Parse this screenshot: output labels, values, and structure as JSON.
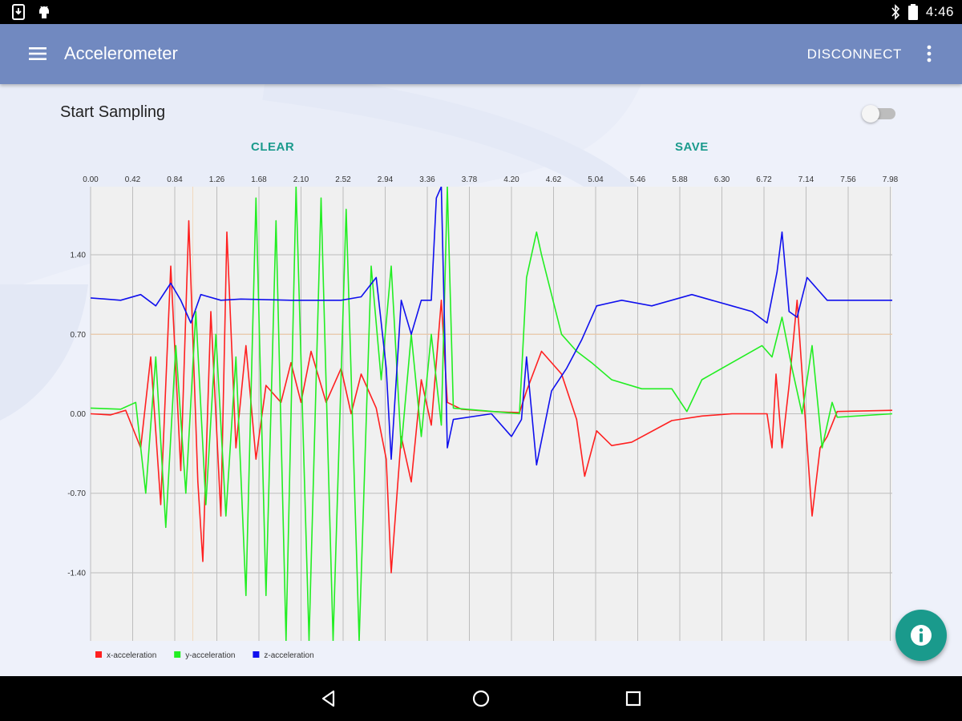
{
  "status_bar": {
    "time": "4:46",
    "icons": [
      "download-notification-icon",
      "android-notification-icon",
      "bluetooth-icon",
      "battery-icon"
    ]
  },
  "app_bar": {
    "title": "Accelerometer",
    "action_label": "DISCONNECT",
    "menu_icon": "hamburger-menu-icon",
    "overflow_icon": "overflow-menu-icon"
  },
  "controls": {
    "sampling_label": "Start Sampling",
    "sampling_enabled": false,
    "clear_label": "CLEAR",
    "save_label": "SAVE"
  },
  "colors": {
    "app_bar": "#7189c0",
    "accent": "#1a9a8c",
    "x_series": "#ff2020",
    "y_series": "#22ee22",
    "z_series": "#1010ee"
  },
  "chart_data": {
    "type": "line",
    "x_ticks": [
      "0.00",
      "0.42",
      "0.84",
      "1.26",
      "1.68",
      "2.10",
      "2.52",
      "2.94",
      "3.36",
      "3.78",
      "4.20",
      "4.62",
      "5.04",
      "5.46",
      "5.88",
      "6.30",
      "6.72",
      "7.14",
      "7.56",
      "7.98"
    ],
    "y_ticks": [
      "1.40",
      "0.70",
      "0.00",
      "-0.70",
      "-1.40"
    ],
    "xlim": [
      0,
      8.0
    ],
    "ylim": [
      -2.0,
      2.0
    ],
    "grid": true,
    "legend_position": "bottom-left",
    "series": [
      {
        "name": "x-acceleration",
        "color": "#ff2020",
        "points": [
          [
            0,
            0
          ],
          [
            0.2,
            -0.01
          ],
          [
            0.35,
            0.03
          ],
          [
            0.5,
            -0.3
          ],
          [
            0.6,
            0.5
          ],
          [
            0.7,
            -0.8
          ],
          [
            0.8,
            1.3
          ],
          [
            0.9,
            -0.5
          ],
          [
            0.98,
            1.7
          ],
          [
            1.07,
            -0.6
          ],
          [
            1.12,
            -1.3
          ],
          [
            1.2,
            0.9
          ],
          [
            1.3,
            -0.9
          ],
          [
            1.36,
            1.6
          ],
          [
            1.45,
            -0.3
          ],
          [
            1.55,
            0.6
          ],
          [
            1.65,
            -0.4
          ],
          [
            1.75,
            0.25
          ],
          [
            1.9,
            0.1
          ],
          [
            2.0,
            0.45
          ],
          [
            2.1,
            0.1
          ],
          [
            2.2,
            0.55
          ],
          [
            2.35,
            0.1
          ],
          [
            2.5,
            0.4
          ],
          [
            2.6,
            0.0
          ],
          [
            2.7,
            0.35
          ],
          [
            2.85,
            0.05
          ],
          [
            2.95,
            -0.4
          ],
          [
            3.0,
            -1.4
          ],
          [
            3.1,
            -0.2
          ],
          [
            3.2,
            -0.6
          ],
          [
            3.3,
            0.3
          ],
          [
            3.4,
            -0.1
          ],
          [
            3.5,
            1.0
          ],
          [
            3.56,
            0.1
          ],
          [
            3.7,
            0.04
          ],
          [
            4.0,
            0.02
          ],
          [
            4.28,
            0.01
          ],
          [
            4.35,
            0.2
          ],
          [
            4.5,
            0.55
          ],
          [
            4.7,
            0.35
          ],
          [
            4.85,
            -0.05
          ],
          [
            4.93,
            -0.55
          ],
          [
            5.05,
            -0.15
          ],
          [
            5.2,
            -0.28
          ],
          [
            5.4,
            -0.25
          ],
          [
            5.8,
            -0.06
          ],
          [
            6.1,
            -0.02
          ],
          [
            6.4,
            0.0
          ],
          [
            6.75,
            0.0
          ],
          [
            6.8,
            -0.3
          ],
          [
            6.84,
            0.35
          ],
          [
            6.9,
            -0.3
          ],
          [
            6.97,
            0.25
          ],
          [
            7.05,
            1.0
          ],
          [
            7.12,
            0.1
          ],
          [
            7.2,
            -0.9
          ],
          [
            7.28,
            -0.3
          ],
          [
            7.35,
            -0.2
          ],
          [
            7.45,
            0.02
          ],
          [
            8.0,
            0.03
          ]
        ]
      },
      {
        "name": "y-acceleration",
        "color": "#22ee22",
        "points": [
          [
            0,
            0.05
          ],
          [
            0.3,
            0.04
          ],
          [
            0.45,
            0.1
          ],
          [
            0.55,
            -0.7
          ],
          [
            0.65,
            0.5
          ],
          [
            0.75,
            -1.0
          ],
          [
            0.85,
            0.6
          ],
          [
            0.95,
            -0.7
          ],
          [
            1.05,
            0.9
          ],
          [
            1.15,
            -0.8
          ],
          [
            1.25,
            0.7
          ],
          [
            1.35,
            -0.9
          ],
          [
            1.45,
            0.5
          ],
          [
            1.55,
            -1.6
          ],
          [
            1.65,
            1.9
          ],
          [
            1.75,
            -1.6
          ],
          [
            1.85,
            1.7
          ],
          [
            1.95,
            -2.0
          ],
          [
            2.05,
            2.0
          ],
          [
            2.18,
            -2.0
          ],
          [
            2.3,
            1.9
          ],
          [
            2.42,
            -2.0
          ],
          [
            2.55,
            1.8
          ],
          [
            2.68,
            -2.0
          ],
          [
            2.8,
            1.3
          ],
          [
            2.9,
            0.3
          ],
          [
            3.0,
            1.3
          ],
          [
            3.1,
            -0.3
          ],
          [
            3.2,
            0.7
          ],
          [
            3.3,
            -0.2
          ],
          [
            3.4,
            0.7
          ],
          [
            3.5,
            -0.1
          ],
          [
            3.56,
            2.0
          ],
          [
            3.62,
            0.05
          ],
          [
            4.28,
            0.0
          ],
          [
            4.35,
            1.2
          ],
          [
            4.45,
            1.6
          ],
          [
            4.5,
            1.4
          ],
          [
            4.7,
            0.7
          ],
          [
            4.85,
            0.55
          ],
          [
            5.0,
            0.45
          ],
          [
            5.2,
            0.3
          ],
          [
            5.5,
            0.22
          ],
          [
            5.8,
            0.22
          ],
          [
            5.95,
            0.02
          ],
          [
            6.1,
            0.3
          ],
          [
            6.4,
            0.45
          ],
          [
            6.7,
            0.6
          ],
          [
            6.8,
            0.5
          ],
          [
            6.9,
            0.85
          ],
          [
            7.0,
            0.4
          ],
          [
            7.1,
            0.0
          ],
          [
            7.2,
            0.6
          ],
          [
            7.3,
            -0.3
          ],
          [
            7.4,
            0.1
          ],
          [
            7.45,
            -0.03
          ],
          [
            8.0,
            0.0
          ]
        ]
      },
      {
        "name": "z-acceleration",
        "color": "#1010ee",
        "points": [
          [
            0,
            1.02
          ],
          [
            0.3,
            1.0
          ],
          [
            0.5,
            1.05
          ],
          [
            0.65,
            0.95
          ],
          [
            0.8,
            1.15
          ],
          [
            0.9,
            1.0
          ],
          [
            1.0,
            0.8
          ],
          [
            1.1,
            1.05
          ],
          [
            1.3,
            1.0
          ],
          [
            1.5,
            1.01
          ],
          [
            2.0,
            1.0
          ],
          [
            2.5,
            1.0
          ],
          [
            2.7,
            1.03
          ],
          [
            2.85,
            1.2
          ],
          [
            2.95,
            0.4
          ],
          [
            3.0,
            -0.4
          ],
          [
            3.1,
            1.0
          ],
          [
            3.2,
            0.7
          ],
          [
            3.3,
            1.0
          ],
          [
            3.4,
            1.0
          ],
          [
            3.45,
            1.9
          ],
          [
            3.5,
            2.0
          ],
          [
            3.56,
            -0.3
          ],
          [
            3.62,
            -0.05
          ],
          [
            4.0,
            0.0
          ],
          [
            4.2,
            -0.2
          ],
          [
            4.3,
            -0.05
          ],
          [
            4.35,
            0.5
          ],
          [
            4.45,
            -0.45
          ],
          [
            4.6,
            0.2
          ],
          [
            4.75,
            0.4
          ],
          [
            4.9,
            0.65
          ],
          [
            5.05,
            0.95
          ],
          [
            5.3,
            1.0
          ],
          [
            5.6,
            0.95
          ],
          [
            6.0,
            1.05
          ],
          [
            6.2,
            1.0
          ],
          [
            6.4,
            0.95
          ],
          [
            6.6,
            0.9
          ],
          [
            6.75,
            0.8
          ],
          [
            6.85,
            1.25
          ],
          [
            6.9,
            1.6
          ],
          [
            6.97,
            0.9
          ],
          [
            7.05,
            0.85
          ],
          [
            7.15,
            1.2
          ],
          [
            7.25,
            1.1
          ],
          [
            7.35,
            1.0
          ],
          [
            8.0,
            1.0
          ]
        ]
      }
    ]
  }
}
